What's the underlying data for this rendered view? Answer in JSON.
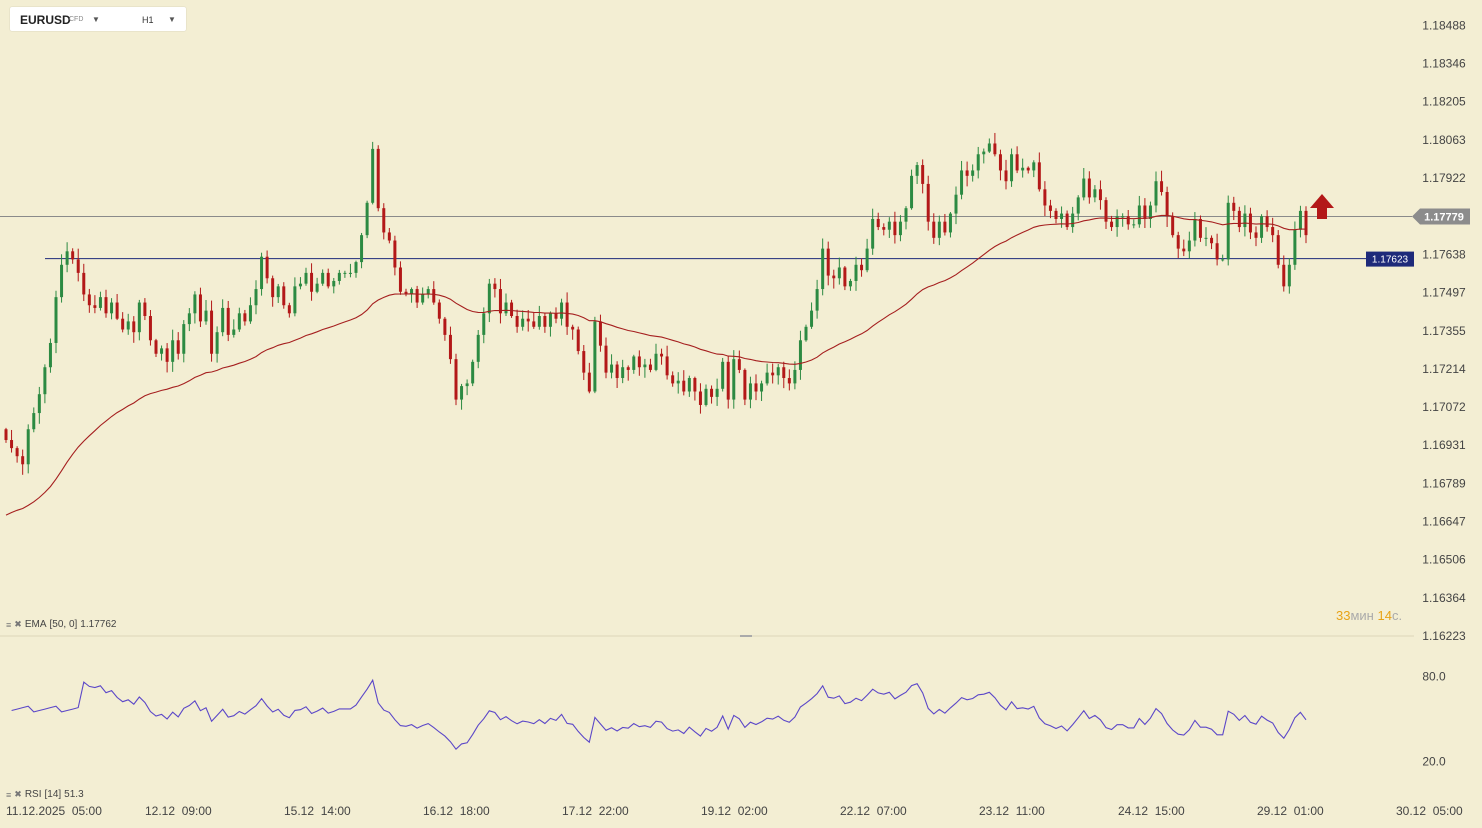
{
  "toolbar": {
    "symbol": "EURUSD",
    "instrument_type": "CFD",
    "timeframe": "H1"
  },
  "colors": {
    "background": "#f3eed3",
    "bull": "#2c8a42",
    "bear": "#b31818",
    "ema": "#a51f1f",
    "rsi": "#5b47c8",
    "level_line": "#1e2a7a",
    "current_price_line": "#8a8a8a"
  },
  "price_axis": {
    "labels": [
      "1.18488",
      "1.18346",
      "1.18205",
      "1.18063",
      "1.17922",
      "1.17779",
      "1.17638",
      "1.17497",
      "1.17355",
      "1.17214",
      "1.17072",
      "1.16931",
      "1.16789",
      "1.16647",
      "1.16506",
      "1.16364",
      "1.16223"
    ]
  },
  "current_price": "1.17779",
  "level_price": "1.17623",
  "ema_label": {
    "name": "EMA",
    "params": "[50, 0]",
    "value": "1.17762"
  },
  "rsi_label": {
    "name": "RSI",
    "params": "[14]",
    "value": "51.3"
  },
  "rsi_axis": {
    "labels": [
      "80.0",
      "20.0"
    ]
  },
  "timer": {
    "minutes": "33",
    "minutes_unit": "мин",
    "seconds": "14",
    "seconds_unit": "с."
  },
  "time_axis": {
    "labels": [
      "11.12.2025  05:00",
      "12.12  09:00",
      "15.12  14:00",
      "16.12  18:00",
      "17.12  22:00",
      "19.12  02:00",
      "22.12  07:00",
      "23.12  11:00",
      "24.12  15:00",
      "29.12  01:00",
      "30.12  05:00"
    ]
  },
  "signal_arrow": {
    "direction": "up",
    "icon": "up-arrow-icon"
  },
  "chart_data": {
    "type": "candlestick",
    "symbol": "EURUSD",
    "interval": "H1",
    "y_range": [
      1.16223,
      1.1856
    ],
    "horizontal_lines": [
      {
        "name": "current price",
        "value": 1.17779
      },
      {
        "name": "level",
        "value": 1.17623
      }
    ],
    "ohlc_closes": [
      1.1695,
      1.1692,
      1.1689,
      1.1686,
      1.1699,
      1.1705,
      1.1712,
      1.1722,
      1.1731,
      1.1748,
      1.176,
      1.1765,
      1.1762,
      1.1757,
      1.1749,
      1.1745,
      1.1744,
      1.1748,
      1.1742,
      1.1746,
      1.174,
      1.1736,
      1.1739,
      1.1735,
      1.1746,
      1.1741,
      1.1732,
      1.1727,
      1.1729,
      1.1724,
      1.1732,
      1.1727,
      1.1738,
      1.1742,
      1.1749,
      1.1739,
      1.1743,
      1.1727,
      1.1735,
      1.1744,
      1.1734,
      1.1736,
      1.1742,
      1.1739,
      1.1745,
      1.1751,
      1.1763,
      1.1755,
      1.1748,
      1.1752,
      1.1745,
      1.1742,
      1.1752,
      1.1753,
      1.1757,
      1.175,
      1.1753,
      1.1757,
      1.1752,
      1.1754,
      1.1757,
      1.1757,
      1.1757,
      1.1761,
      1.1771,
      1.1783,
      1.1803,
      1.1781,
      1.1772,
      1.1769,
      1.1759,
      1.175,
      1.1749,
      1.1751,
      1.1746,
      1.1749,
      1.1751,
      1.1746,
      1.174,
      1.1734,
      1.1725,
      1.171,
      1.1715,
      1.1716,
      1.1724,
      1.1734,
      1.1742,
      1.1753,
      1.1751,
      1.1742,
      1.1746,
      1.1741,
      1.1737,
      1.174,
      1.1739,
      1.1737,
      1.1741,
      1.1737,
      1.1742,
      1.174,
      1.1746,
      1.1737,
      1.1736,
      1.1728,
      1.172,
      1.1713,
      1.1739,
      1.173,
      1.172,
      1.1723,
      1.1718,
      1.1722,
      1.1721,
      1.1726,
      1.1722,
      1.1723,
      1.1721,
      1.1727,
      1.1726,
      1.1719,
      1.1716,
      1.1717,
      1.1713,
      1.1718,
      1.1713,
      1.1708,
      1.1714,
      1.1711,
      1.1714,
      1.1724,
      1.171,
      1.1725,
      1.1721,
      1.171,
      1.1716,
      1.1713,
      1.1716,
      1.172,
      1.1719,
      1.1722,
      1.1718,
      1.1716,
      1.1721,
      1.1732,
      1.1737,
      1.1743,
      1.1751,
      1.1766,
      1.1756,
      1.1755,
      1.1759,
      1.1752,
      1.1754,
      1.176,
      1.1758,
      1.1766,
      1.1777,
      1.1774,
      1.1773,
      1.1776,
      1.1771,
      1.1776,
      1.1781,
      1.1793,
      1.1797,
      1.179,
      1.1776,
      1.177,
      1.1776,
      1.1772,
      1.1779,
      1.1786,
      1.1795,
      1.1793,
      1.1795,
      1.1801,
      1.1802,
      1.1805,
      1.1801,
      1.1795,
      1.1791,
      1.1801,
      1.1795,
      1.1796,
      1.1795,
      1.1798,
      1.1788,
      1.1782,
      1.178,
      1.1777,
      1.1779,
      1.1774,
      1.1779,
      1.1785,
      1.1792,
      1.1785,
      1.1788,
      1.1784,
      1.1776,
      1.1774,
      1.1778,
      1.1778,
      1.1775,
      1.1775,
      1.1782,
      1.1777,
      1.1782,
      1.1791,
      1.1787,
      1.1778,
      1.1771,
      1.1766,
      1.1765,
      1.1769,
      1.1777,
      1.177,
      1.177,
      1.1768,
      1.1762,
      1.1762,
      1.1783,
      1.178,
      1.1774,
      1.1779,
      1.1772,
      1.177,
      1.1778,
      1.1774,
      1.1771,
      1.176,
      1.1752,
      1.176,
      1.1773,
      1.178,
      1.1771
    ],
    "ema": {
      "name": "EMA [50, 0]",
      "last": 1.17762
    },
    "rsi": {
      "name": "RSI [14]",
      "last": 51.3,
      "levels": [
        80,
        20
      ]
    },
    "x_tick_labels": [
      "11.12.2025  05:00",
      "12.12  09:00",
      "15.12  14:00",
      "16.12  18:00",
      "17.12  22:00",
      "19.12  02:00",
      "22.12  07:00",
      "23.12  11:00",
      "24.12  15:00",
      "29.12  01:00",
      "30.12  05:00"
    ]
  }
}
